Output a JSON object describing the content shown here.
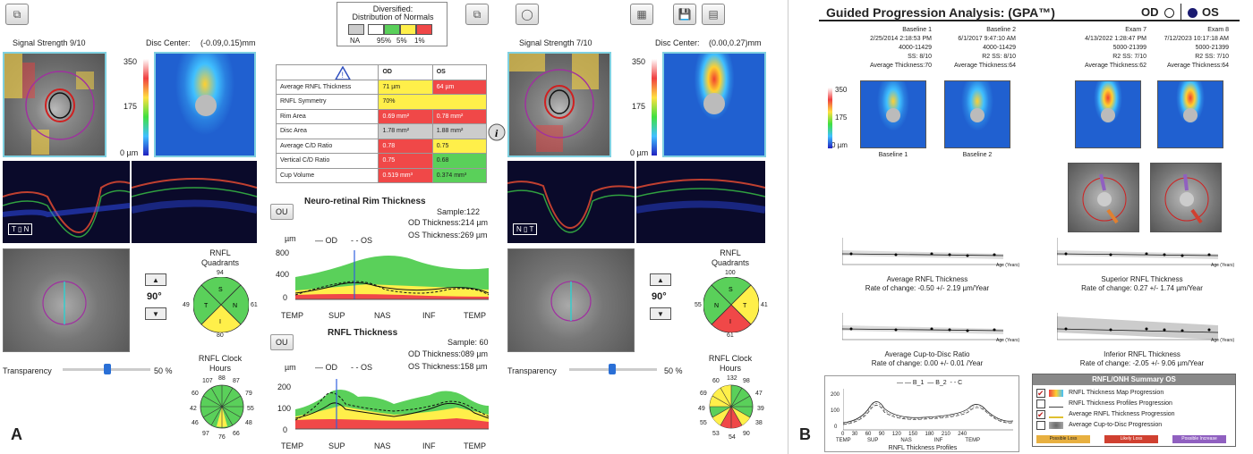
{
  "panelA": {
    "label": "A",
    "left": {
      "signal": "Signal Strength  9/10",
      "disc_center_label": "Disc Center:",
      "disc_center_value": "(-0.09,0.15)mm",
      "scale_max": "350",
      "scale_mid": "175",
      "scale_min": "0 µm",
      "angle": "90°",
      "transparency_label": "Transparency",
      "transparency_value": "50 %",
      "quadrants_title": "RNFL Quadrants",
      "quadrants": {
        "S": "94",
        "N": "61",
        "I": "80",
        "T": "49"
      },
      "clock_title": "RNFL Clock Hours",
      "clock": [
        "107",
        "88",
        "87",
        "79",
        "55",
        "48",
        "66",
        "76",
        "97",
        "46",
        "42",
        "60"
      ]
    },
    "right": {
      "signal": "Signal Strength  7/10",
      "disc_center_label": "Disc Center:",
      "disc_center_value": "(0.00,0.27)mm",
      "scale_max": "350",
      "scale_mid": "175",
      "scale_min": "0 µm",
      "angle": "90°",
      "transparency_label": "Transparency",
      "transparency_value": "50 %",
      "quadrants_title": "RNFL Quadrants",
      "quadrants": {
        "S": "100",
        "N": "55",
        "I": "61",
        "T": "41"
      },
      "clock_title": "RNFL Clock Hours",
      "clock": [
        "132",
        "98",
        "47",
        "39",
        "38",
        "54",
        "53",
        "55",
        "49",
        "69",
        "60",
        "90"
      ]
    },
    "distribution": {
      "title": "Diversified:",
      "subtitle": "Distribution of Normals",
      "labels": [
        "NA",
        "95%",
        "5%",
        "1%"
      ],
      "colors": [
        "#cccccc",
        "#ffffff",
        "#5ad05a",
        "#ffef4a",
        "#f04848"
      ]
    },
    "table": {
      "col_od": "OD",
      "col_os": "OS",
      "rows": [
        {
          "label": "Average RNFL Thickness",
          "od": "71 µm",
          "os": "64 µm",
          "odc": "y",
          "osc": "r"
        },
        {
          "label": "RNFL Symmetry",
          "od": "70%",
          "os": "",
          "odc": "y",
          "osc": "y"
        },
        {
          "label": "Rim Area",
          "od": "0.69 mm²",
          "os": "0.78 mm²",
          "odc": "r",
          "osc": "r"
        },
        {
          "label": "Disc Area",
          "od": "1.78 mm²",
          "os": "1.88 mm²",
          "odc": "gr",
          "osc": "gr"
        },
        {
          "label": "Average C/D Ratio",
          "od": "0.78",
          "os": "0.75",
          "odc": "r",
          "osc": "y"
        },
        {
          "label": "Vertical C/D Ratio",
          "od": "0.75",
          "os": "0.68",
          "odc": "r",
          "osc": "g"
        },
        {
          "label": "Cup Volume",
          "od": "0.519 mm³",
          "os": "0.374 mm³",
          "odc": "r",
          "osc": "g"
        }
      ]
    },
    "rim_chart": {
      "ou": "OU",
      "title": "Neuro-retinal Rim Thickness",
      "sample": "Sample:122",
      "od_thick": "OD Thickness:214 µm",
      "os_thick": "OS Thickness:269 µm",
      "unit": "µm",
      "legend_od": "OD",
      "legend_os": "OS",
      "yticks": [
        "800",
        "400",
        "0"
      ],
      "xticks": [
        "TEMP",
        "SUP",
        "NAS",
        "INF",
        "TEMP"
      ]
    },
    "rnfl_chart": {
      "ou": "OU",
      "title": "RNFL Thickness",
      "sample": "Sample: 60",
      "od_thick": "OD Thickness:089 µm",
      "os_thick": "OS Thickness:158 µm",
      "unit": "µm",
      "legend_od": "OD",
      "legend_os": "OS",
      "yticks": [
        "200",
        "100",
        "0"
      ],
      "xticks": [
        "TEMP",
        "SUP",
        "NAS",
        "INF",
        "TEMP"
      ]
    }
  },
  "panelB": {
    "label": "B",
    "title": "Guided Progression Analysis: (GPA™)",
    "od": "OD",
    "os": "OS",
    "exams": [
      {
        "name": "Baseline 1",
        "date": "2/25/2014 2:18:53 PM",
        "serial": "4000-11429",
        "ss": "SS: 8/10",
        "avg": "Average Thickness:70",
        "cap": "Baseline 1"
      },
      {
        "name": "Baseline 2",
        "date": "6/1/2017 9:47:10 AM",
        "serial": "4000-11429",
        "ss": "R2  SS: 8/10",
        "avg": "Average Thickness:64",
        "cap": "Baseline 2"
      },
      {
        "name": "Exam 7",
        "date": "4/13/2022 1:28:47 PM",
        "serial": "5000-21399",
        "ss": "R2  SS: 7/10",
        "avg": "Average Thickness:62",
        "cap": ""
      },
      {
        "name": "Exam 8",
        "date": "7/12/2023 10:17:18 AM",
        "serial": "5000-21399",
        "ss": "R2  SS: 7/10",
        "avg": "Average Thickness:64",
        "cap": ""
      }
    ],
    "scale": [
      "350",
      "175",
      "0 µm"
    ],
    "trends": [
      {
        "title": "Average RNFL Thickness",
        "rate": "Rate of change: -0.50 +/- 2.19 µm/Year"
      },
      {
        "title": "Superior RNFL Thickness",
        "rate": "Rate of change: 0.27 +/- 1.74 µm/Year"
      },
      {
        "title": "Average Cup-to-Disc Ratio",
        "rate": "Rate of change: 0.00 +/- 0.01  /Year"
      },
      {
        "title": "Inferior RNFL Thickness",
        "rate": "Rate of change: -2.05 +/- 9.06 µm/Year"
      }
    ],
    "age_label": "Age (Years)",
    "profiles": {
      "title": "RNFL Thickness Profiles",
      "legend": [
        "B_1",
        "B_2",
        "C"
      ],
      "yticks": [
        "200",
        "100",
        "0"
      ],
      "xticks": [
        "0",
        "30",
        "60",
        "90",
        "120",
        "150",
        "180",
        "210",
        "240"
      ],
      "xlabels": [
        "TEMP",
        "SUP",
        "NAS",
        "INF",
        "TEMP"
      ]
    },
    "summary": {
      "title": "RNFL/ONH Summary OS",
      "items": [
        {
          "label": "RNFL Thickness Map Progression",
          "checked": true
        },
        {
          "label": "RNFL Thickness Profiles Progression",
          "checked": false
        },
        {
          "label": "Average RNFL Thickness Progression",
          "checked": true
        },
        {
          "label": "Average Cup-to-Disc Progression",
          "checked": false
        }
      ],
      "footer": [
        "Possible Loss",
        "Likely Loss",
        "Possible Increase"
      ]
    }
  }
}
